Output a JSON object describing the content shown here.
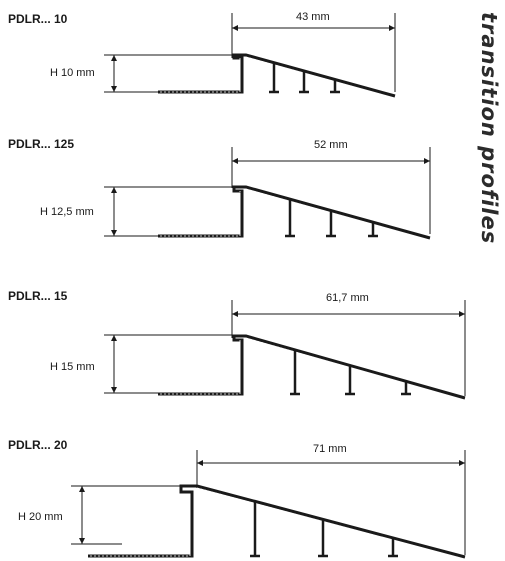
{
  "side_title": "transition profiles",
  "profiles": [
    {
      "name": "PDLR... 10",
      "height_label": "H 10 mm",
      "width_label": "43 mm"
    },
    {
      "name": "PDLR... 125",
      "height_label": "H 12,5 mm",
      "width_label": "52 mm"
    },
    {
      "name": "PDLR... 15",
      "height_label": "H 15 mm",
      "width_label": "61,7 mm"
    },
    {
      "name": "PDLR... 20",
      "height_label": "H 20 mm",
      "width_label": "71 mm"
    }
  ]
}
